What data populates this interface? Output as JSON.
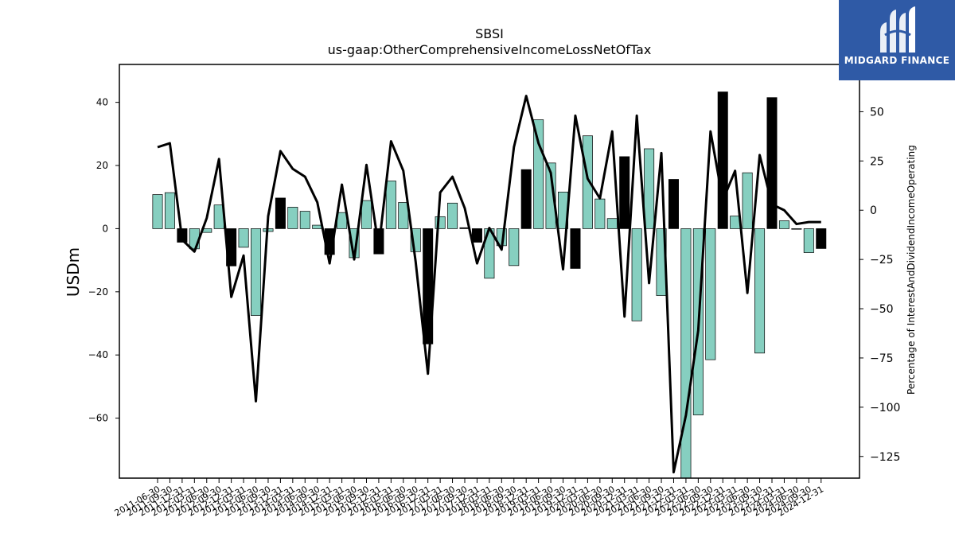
{
  "chart_data": {
    "type": "bar",
    "title": "SBSI",
    "subtitle": "us-gaap:OtherComprehensiveIncomeLossNetOfTax",
    "ylabel": "USDm",
    "y2label": "Percentage of InterestAndDividendIncomeOperating",
    "ylim": [
      -79,
      52
    ],
    "y2lim": [
      -136,
      74
    ],
    "yticks": [
      -60,
      -40,
      -20,
      0,
      20,
      40
    ],
    "y2ticks": [
      -125,
      -100,
      -75,
      -50,
      -25,
      0,
      25,
      50
    ],
    "bar_colors": {
      "positive_change": "#86cfc0",
      "highlight": "#000000"
    },
    "line_color": "#000000",
    "categories": [
      "2011-06-30",
      "2011-09-30",
      "2011-12-31",
      "2012-03-31",
      "2012-06-30",
      "2012-09-30",
      "2012-12-31",
      "2013-03-31",
      "2013-06-30",
      "2013-09-30",
      "2013-12-31",
      "2014-03-31",
      "2014-06-30",
      "2014-09-30",
      "2014-12-31",
      "2015-03-31",
      "2015-06-30",
      "2015-09-30",
      "2015-12-31",
      "2016-03-31",
      "2016-06-30",
      "2016-09-30",
      "2016-12-31",
      "2017-03-31",
      "2017-06-30",
      "2017-09-30",
      "2017-12-31",
      "2018-03-31",
      "2018-06-30",
      "2018-09-30",
      "2018-12-31",
      "2019-03-31",
      "2019-06-30",
      "2019-09-30",
      "2019-12-31",
      "2020-03-31",
      "2020-06-30",
      "2020-09-30",
      "2020-12-31",
      "2021-03-31",
      "2021-06-30",
      "2021-09-30",
      "2021-12-31",
      "2022-03-31",
      "2022-06-30",
      "2022-09-30",
      "2022-12-31",
      "2023-03-31",
      "2023-06-30",
      "2023-09-30",
      "2023-12-31",
      "2024-03-31",
      "2024-06-30",
      "2024-09-30",
      "2024-12-31"
    ],
    "xtick_labels": [
      "2011-06-30",
      "2011-09-30",
      "2011-12-31",
      "2012-03-31",
      "2012-06-30",
      "2012-09-30",
      "2012-12-31",
      "2013-03-31",
      "2013-06-30",
      "2013-09-30",
      "2013-12-31",
      "2014-03-31",
      "2014-06-30",
      "2014-09-30",
      "2014-12-31",
      "2015-03-31",
      "2015-06-30",
      "2015-09-30",
      "2015-12-31",
      "2016-03-31",
      "2016-06-30",
      "2016-09-30",
      "2016-12-31",
      "2017-03-31",
      "2017-06-30",
      "2017-09-30",
      "2017-12-31",
      "2018-03-31",
      "2018-06-30",
      "2018-09-30",
      "2018-12-31",
      "2019-03-31",
      "2019-06-30",
      "2019-09-30",
      "2019-12-31",
      "2020-03-31",
      "2020-06-30",
      "2020-09-30",
      "2020-12-31",
      "2021-03-31",
      "2021-06-30",
      "2021-09-30",
      "2021-12-31",
      "2022-03-31",
      "2022-06-30",
      "2022-09-30",
      "2022-12-31",
      "2023-03-31",
      "2023-06-30",
      "2023-09-30",
      "2023-12-31",
      "2024-03-31",
      "2024-06-30",
      "2024-09-30",
      "2024-12-31"
    ],
    "series": [
      {
        "axis": "left",
        "kind": "bar",
        "values": [
          10.8,
          11.4,
          -4.3,
          -6.4,
          -1.2,
          7.5,
          -11.8,
          -5.9,
          -27.5,
          -0.9,
          9.7,
          6.8,
          5.5,
          1.1,
          -8.2,
          5.1,
          -9.2,
          8.9,
          -8.0,
          15.1,
          8.3,
          -7.3,
          -36.5,
          3.8,
          8.1,
          0.3,
          -4.3,
          -15.7,
          -5.4,
          -11.7,
          18.7,
          34.5,
          20.8,
          11.6,
          -12.6,
          29.4,
          9.4,
          3.2,
          22.8,
          -29.2,
          25.3,
          -21.2,
          15.6,
          -79.0,
          -59.0,
          -41.5,
          43.3,
          4.0,
          17.7,
          -39.4,
          41.5,
          2.5,
          0.0,
          -7.6,
          -6.3
        ],
        "highlighted": [
          false,
          false,
          true,
          false,
          false,
          false,
          true,
          false,
          false,
          false,
          true,
          false,
          false,
          false,
          true,
          false,
          false,
          false,
          true,
          false,
          false,
          false,
          true,
          false,
          false,
          true,
          true,
          false,
          false,
          false,
          true,
          false,
          false,
          false,
          true,
          false,
          false,
          false,
          true,
          false,
          false,
          false,
          true,
          false,
          false,
          false,
          true,
          false,
          false,
          false,
          true,
          false,
          false,
          false,
          true
        ]
      },
      {
        "axis": "right",
        "kind": "line",
        "values": [
          32,
          34,
          -15,
          -21,
          -4,
          26,
          -44,
          -23,
          -97,
          -3,
          30,
          21,
          17,
          4,
          -27,
          13,
          -25,
          23,
          -19,
          35,
          20,
          -26,
          -83,
          9,
          17,
          1,
          -27,
          -9,
          -20,
          32,
          58,
          34,
          19,
          -30,
          48,
          16,
          6,
          40,
          -54,
          48,
          -37,
          29,
          -133,
          -104,
          -61,
          40,
          5,
          20,
          -42,
          28,
          3,
          0,
          -7,
          -6,
          -6
        ]
      }
    ]
  },
  "logo": {
    "text": "MIDGARD FINANCE",
    "color": "#2f5aa6"
  }
}
